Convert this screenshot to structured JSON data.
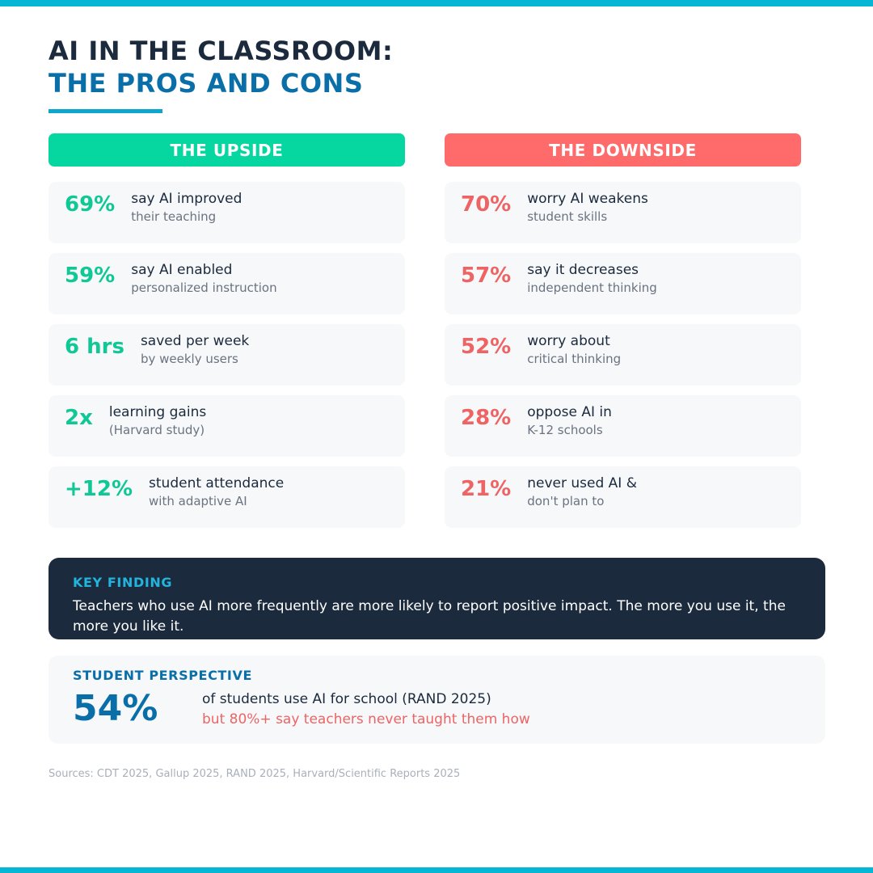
{
  "title": {
    "line1": "AI IN THE CLASSROOM:",
    "line2": "THE PROS AND CONS"
  },
  "upside": {
    "heading": "THE UPSIDE",
    "items": [
      {
        "stat": "69%",
        "line1": "say AI improved",
        "line2": "their teaching"
      },
      {
        "stat": "59%",
        "line1": "say AI enabled",
        "line2": "personalized instruction"
      },
      {
        "stat": "6 hrs",
        "line1": "saved per week",
        "line2": "by weekly users"
      },
      {
        "stat": "2x",
        "line1": "learning gains",
        "line2": "(Harvard study)"
      },
      {
        "stat": "+12%",
        "line1": "student attendance",
        "line2": "with adaptive AI"
      }
    ]
  },
  "downside": {
    "heading": "THE DOWNSIDE",
    "items": [
      {
        "stat": "70%",
        "line1": "worry AI weakens",
        "line2": "student skills"
      },
      {
        "stat": "57%",
        "line1": "say it decreases",
        "line2": "independent thinking"
      },
      {
        "stat": "52%",
        "line1": "worry about",
        "line2": "critical thinking"
      },
      {
        "stat": "28%",
        "line1": "oppose AI in",
        "line2": "K-12 schools"
      },
      {
        "stat": "21%",
        "line1": "never used AI &",
        "line2": "don't plan to"
      }
    ]
  },
  "key_finding": {
    "label": "KEY FINDING",
    "text": "Teachers who use AI more frequently are more likely to report positive impact. The more you use it, the more you like it."
  },
  "student_perspective": {
    "label": "STUDENT PERSPECTIVE",
    "stat": "54%",
    "line1": "of students use AI for school (RAND 2025)",
    "line2": "but 80%+ say teachers never taught them how"
  },
  "sources": "Sources: CDT 2025, Gallup 2025, RAND 2025, Harvard/Scientific Reports 2025",
  "colors": {
    "accent": "#06b6d4",
    "upside": "#06d6a0",
    "downside": "#ff6b6b",
    "navy": "#1b2a3d",
    "blue": "#0a6fa8"
  }
}
